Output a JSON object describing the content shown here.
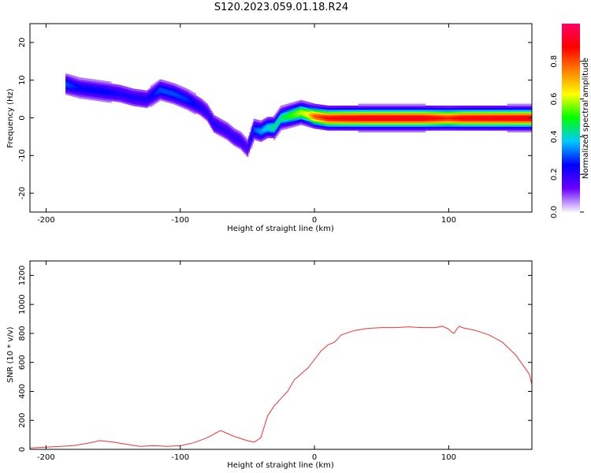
{
  "figure": {
    "title": "S120.2023.059.01.18.R24"
  },
  "chart_data": [
    {
      "type": "heatmap",
      "xlabel": "Height of straight line (km)",
      "ylabel": "Frequency (Hz)",
      "xlim": [
        -212,
        162
      ],
      "ylim": [
        -25,
        25
      ],
      "xticks": [
        -200,
        -100,
        0,
        100
      ],
      "yticks": [
        -20,
        -10,
        0,
        10,
        20
      ],
      "grid": false,
      "colorbar": {
        "label": "Normalized spectral amplitude",
        "range": [
          0,
          1
        ],
        "ticks": [
          "0.0",
          "0.2",
          "0.4",
          "0.6",
          "0.8"
        ],
        "tick_values": [
          0.0,
          0.2,
          0.4,
          0.6,
          0.8
        ],
        "colormap": [
          "#f8f6fc",
          "#6a00ff",
          "#0000ff",
          "#00c8ff",
          "#00ff00",
          "#ffff00",
          "#ff8000",
          "#ff0000",
          "#ff0066"
        ]
      },
      "ridge": {
        "x": [
          -185,
          -175,
          -165,
          -155,
          -145,
          -135,
          -125,
          -115,
          -105,
          -95,
          -85,
          -80,
          -75,
          -70,
          -65,
          -60,
          -55,
          -50,
          -45,
          -40,
          -35,
          -30,
          -25,
          -20,
          -15,
          -10,
          -5,
          0,
          10,
          20,
          40,
          60,
          80,
          100,
          110,
          162
        ],
        "y": [
          9,
          8,
          7.5,
          7,
          6.5,
          5.5,
          5,
          7.5,
          6.5,
          5,
          3,
          1.5,
          -1.5,
          -2.5,
          -3.5,
          -5,
          -6,
          -8,
          -3,
          -3.5,
          -2.5,
          -2.5,
          0,
          0.5,
          1,
          1.5,
          1,
          0.5,
          0,
          0,
          0,
          0,
          0,
          0,
          0,
          0
        ],
        "amplitude": [
          0.3,
          0.25,
          0.25,
          0.25,
          0.22,
          0.22,
          0.22,
          0.3,
          0.3,
          0.28,
          0.22,
          0.2,
          0.22,
          0.2,
          0.2,
          0.2,
          0.2,
          0.18,
          0.3,
          0.35,
          0.4,
          0.45,
          0.45,
          0.5,
          0.55,
          0.6,
          0.65,
          0.8,
          0.88,
          0.9,
          0.92,
          0.92,
          0.92,
          0.85,
          0.9,
          0.92
        ]
      }
    },
    {
      "type": "line",
      "xlabel": "Height of straight line (km)",
      "ylabel": "SNR (10 * v/v)",
      "xlim": [
        -212,
        162
      ],
      "ylim": [
        0,
        1300
      ],
      "xticks": [
        -200,
        -100,
        0,
        100
      ],
      "yticks": [
        0,
        200,
        400,
        600,
        800,
        1000,
        1200
      ],
      "grid": false,
      "series": [
        {
          "color": "#ee3333",
          "x": [
            -212,
            -200,
            -180,
            -170,
            -160,
            -150,
            -140,
            -130,
            -120,
            -110,
            -100,
            -90,
            -80,
            -70,
            -60,
            -50,
            -45,
            -40,
            -35,
            -30,
            -25,
            -20,
            -15,
            -10,
            -5,
            0,
            5,
            10,
            15,
            20,
            30,
            40,
            50,
            60,
            70,
            80,
            90,
            95,
            100,
            102,
            104,
            106,
            108,
            110,
            115,
            120,
            130,
            140,
            150,
            160,
            162
          ],
          "y": [
            10,
            15,
            25,
            40,
            60,
            50,
            35,
            20,
            25,
            20,
            25,
            45,
            80,
            130,
            90,
            60,
            50,
            80,
            230,
            300,
            350,
            400,
            480,
            520,
            560,
            620,
            680,
            720,
            740,
            790,
            820,
            835,
            840,
            840,
            845,
            840,
            840,
            850,
            830,
            810,
            800,
            830,
            850,
            840,
            830,
            820,
            790,
            740,
            650,
            520,
            450
          ]
        }
      ]
    }
  ]
}
